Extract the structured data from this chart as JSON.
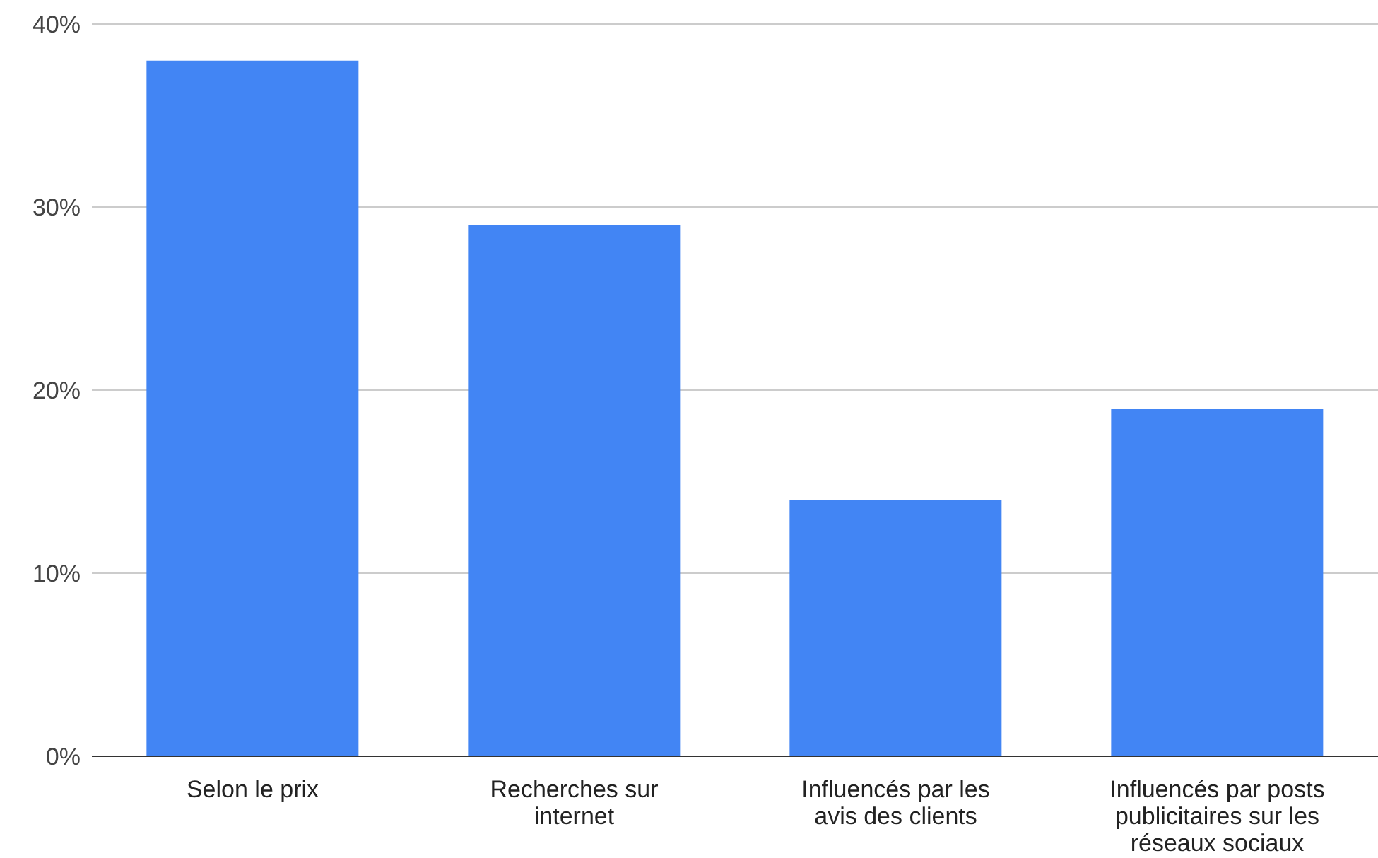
{
  "chart_data": {
    "type": "bar",
    "categories": [
      "Selon le prix",
      "Recherches sur internet",
      "Influencés par les avis des clients",
      "Influencés par posts publicitaires sur les réseaux sociaux"
    ],
    "values": [
      38,
      29,
      14,
      19
    ],
    "color": "#4285f4",
    "ylim": [
      0,
      40
    ],
    "yticks": [
      {
        "value": 0,
        "label": "0%"
      },
      {
        "value": 10,
        "label": "10%"
      },
      {
        "value": 20,
        "label": "20%"
      },
      {
        "value": 30,
        "label": "30%"
      },
      {
        "value": 40,
        "label": "40%"
      }
    ],
    "grid": "y",
    "legend": false
  }
}
